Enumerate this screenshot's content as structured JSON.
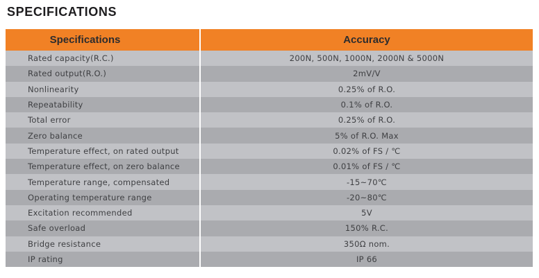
{
  "page": {
    "title": "SPECIFICATIONS"
  },
  "colors": {
    "header_bg": "#F18125",
    "row_light": "#C1C2C6",
    "row_dark": "#AAABAF",
    "text": "#3E3F42",
    "title_text": "#1E1D1F"
  },
  "table": {
    "headers": {
      "left": "Specifications",
      "right": "Accuracy"
    },
    "rows": [
      {
        "label": "Rated capacity(R.C.)",
        "value": "200N, 500N, 1000N, 2000N & 5000N"
      },
      {
        "label": "Rated output(R.O.)",
        "value": "2mV/V"
      },
      {
        "label": "Nonlinearity",
        "value": "0.25% of R.O."
      },
      {
        "label": "Repeatability",
        "value": "0.1% of R.O."
      },
      {
        "label": "Total error",
        "value": "0.25% of R.O."
      },
      {
        "label": "Zero balance",
        "value": "5% of R.O. Max"
      },
      {
        "label": "Temperature effect, on rated output",
        "value": "0.02% of FS / ℃"
      },
      {
        "label": "Temperature effect, on zero balance",
        "value": "0.01% of FS / ℃"
      },
      {
        "label": "Temperature range, compensated",
        "value": "-15~70℃"
      },
      {
        "label": "Operating temperature range",
        "value": "-20~80℃"
      },
      {
        "label": "Excitation recommended",
        "value": "5V"
      },
      {
        "label": "Safe overload",
        "value": "150% R.C."
      },
      {
        "label": "Bridge resistance",
        "value": "350Ω nom."
      },
      {
        "label": "IP rating",
        "value": "IP 66"
      }
    ]
  }
}
